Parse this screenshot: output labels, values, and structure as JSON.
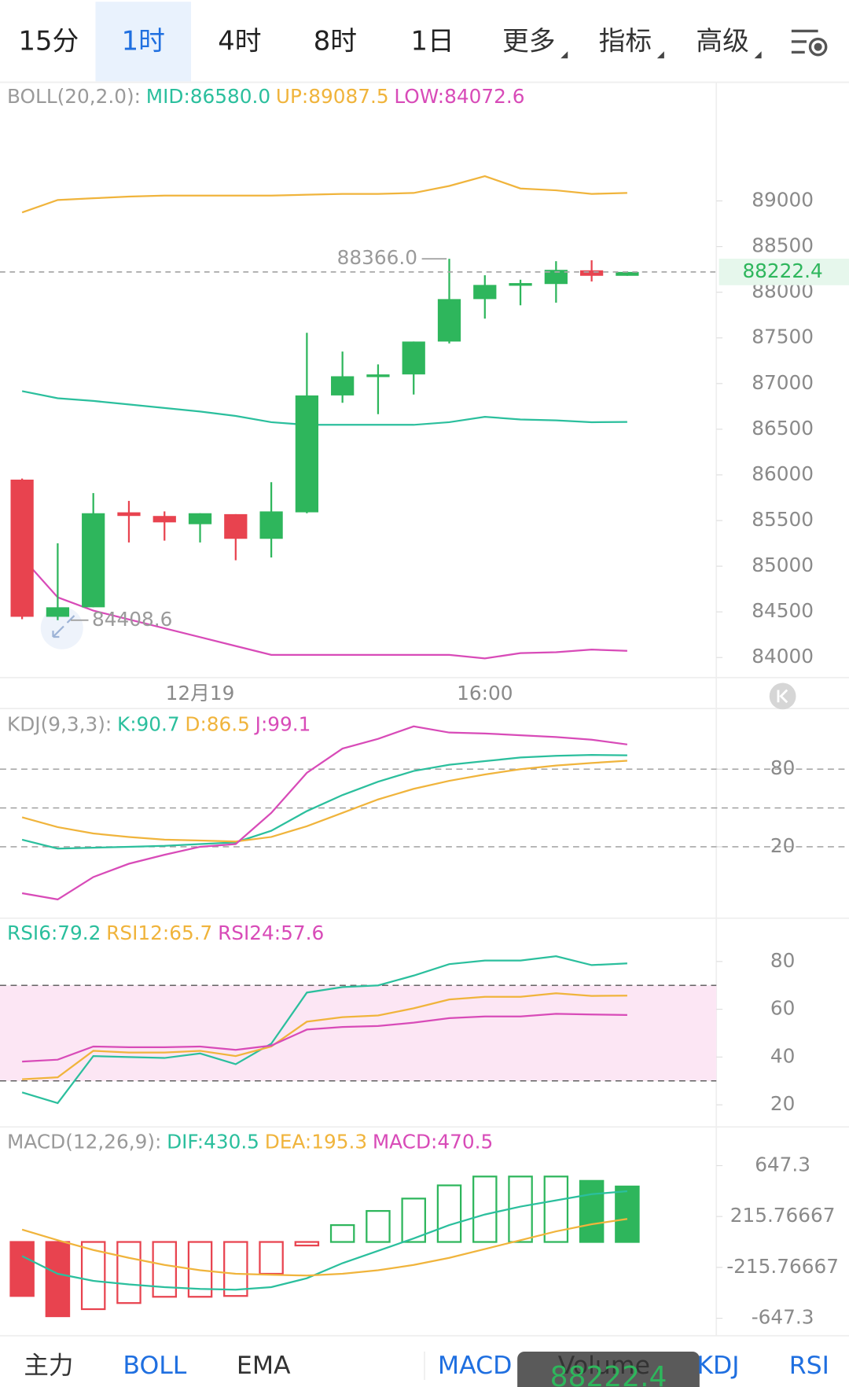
{
  "tabs": {
    "intervals": [
      "15分",
      "1时",
      "4时",
      "8时",
      "1日"
    ],
    "selected": 1,
    "menus": [
      "更多",
      "指标",
      "高级"
    ]
  },
  "chart_data": [
    {
      "type": "candlestick",
      "title": "BOLL(20,2.0):",
      "categories": [
        null,
        null,
        null,
        null,
        null,
        "12月19",
        null,
        null,
        null,
        null,
        null,
        null,
        null,
        "16:00",
        null,
        null,
        null,
        null
      ],
      "open": [
        85948,
        84446,
        84550,
        85590,
        85550,
        85460,
        85570,
        85300,
        85590,
        86870,
        87080,
        87100,
        87460,
        87925,
        88080,
        88090,
        88240,
        88180
      ],
      "high": [
        85960,
        85250,
        85800,
        85715,
        85600,
        85580,
        85570,
        85920,
        87556,
        87350,
        87210,
        87460,
        88366,
        88186,
        88137,
        88340,
        88350,
        88230
      ],
      "low": [
        84420,
        84408.6,
        84550,
        85260,
        85280,
        85260,
        85065,
        85095,
        85580,
        86790,
        86665,
        86880,
        87440,
        87711,
        87857,
        87886,
        88118,
        88180
      ],
      "close": [
        84446,
        84550,
        85580,
        85550,
        85480,
        85580,
        85300,
        85600,
        86870,
        87080,
        87100,
        87460,
        87925,
        88080,
        88100,
        88245,
        88180,
        88222.4
      ],
      "up_color": "#2eb65c",
      "down_color": "#e8434f",
      "series": [
        {
          "name": "MID:86580.0",
          "color": "#2bbf9d",
          "values": [
            86917,
            86839,
            86810,
            86771,
            86733,
            86694,
            86645,
            86577,
            86548,
            86548,
            86548,
            86548,
            86577,
            86636,
            86607,
            86597,
            86577,
            86580
          ]
        },
        {
          "name": "UP:89087.5",
          "color": "#f0b43c",
          "values": [
            88874,
            89010,
            89029,
            89048,
            89058,
            89058,
            89058,
            89058,
            89068,
            89077,
            89077,
            89087,
            89164,
            89271,
            89136,
            89116,
            89077,
            89087.5
          ]
        },
        {
          "name": "LOW:84072.6",
          "color": "#d84bb8",
          "values": [
            85095,
            84659,
            84514,
            84417,
            84320,
            84223,
            84126,
            84029,
            84029,
            84029,
            84029,
            84029,
            84029,
            83990,
            84048,
            84058,
            84087,
            84072.6
          ]
        }
      ],
      "last_price": 88222.4,
      "max_marker": {
        "value": 88366,
        "label": "88366.0"
      },
      "min_marker": 84408.6,
      "ylim": [
        83790,
        90280
      ],
      "yticks": [
        84000,
        84500,
        85000,
        85500,
        86000,
        86500,
        87000,
        87500,
        88000,
        88500,
        89000
      ]
    },
    {
      "type": "line",
      "title": "KDJ(9,3,3):",
      "series": [
        {
          "name": "K:90.7",
          "color": "#2bbf9d",
          "values": [
            25.5,
            18.6,
            19.3,
            20,
            20.7,
            22.1,
            23.4,
            32.4,
            47.6,
            60,
            70.3,
            78.6,
            83.4,
            86.2,
            89,
            90.3,
            91,
            90.7
          ]
        },
        {
          "name": "D:86.5",
          "color": "#f0b43c",
          "values": [
            42.8,
            35.2,
            30.3,
            27.6,
            25.5,
            24.8,
            24.1,
            27.6,
            35.9,
            46.2,
            56.6,
            64.8,
            71,
            75.9,
            80,
            82.8,
            84.8,
            86.5
          ]
        },
        {
          "name": "J:99.1",
          "color": "#d84bb8",
          "values": [
            -15.9,
            -20.7,
            -3.4,
            6.9,
            13.8,
            20,
            22.1,
            46.2,
            77.2,
            95.9,
            103.4,
            113.1,
            108.3,
            107.6,
            106.2,
            104.8,
            102.8,
            99.1
          ]
        }
      ],
      "dashed_levels": [
        20,
        50,
        80
      ],
      "ylim": [
        -34.5,
        125.5
      ],
      "yticks": [
        20,
        80
      ]
    },
    {
      "type": "line",
      "title": "",
      "series": [
        {
          "name": "RSI6:79.2",
          "color": "#2bbf9d",
          "values": [
            25.2,
            20.7,
            40.4,
            40,
            39.6,
            41.5,
            37,
            45.6,
            67,
            69.3,
            70,
            74.1,
            78.9,
            80.4,
            80.4,
            82.2,
            78.5,
            79.2
          ]
        },
        {
          "name": "RSI12:65.7",
          "color": "#f0b43c",
          "values": [
            30.7,
            31.5,
            42.6,
            41.9,
            41.9,
            42.6,
            40.4,
            44.4,
            54.8,
            56.7,
            57.4,
            60.4,
            64.1,
            65.2,
            65.2,
            66.7,
            65.6,
            65.7
          ]
        },
        {
          "name": "RSI24:57.6",
          "color": "#d84bb8",
          "values": [
            38.1,
            38.9,
            44.4,
            44.1,
            44.1,
            44.4,
            43,
            44.8,
            51.5,
            52.6,
            53,
            54.4,
            56.3,
            57,
            57,
            58.1,
            57.8,
            57.6
          ]
        }
      ],
      "band": [
        30,
        70
      ],
      "band_color": "#fce6f4",
      "ylim": [
        11.1,
        97.4
      ],
      "yticks": [
        20,
        40,
        60,
        80
      ]
    },
    {
      "type": "macd",
      "title": "MACD(12,26,9):",
      "series": [
        {
          "name": "DIF:430.5",
          "color": "#2bbf9d",
          "values": [
            -120,
            -270,
            -330,
            -360,
            -383,
            -398,
            -405,
            -383,
            -308,
            -180,
            -75,
            30,
            143,
            233,
            300,
            353,
            405,
            430.5
          ]
        },
        {
          "name": "DEA:195.3",
          "color": "#f0b43c",
          "values": [
            105,
            15,
            -68,
            -135,
            -195,
            -240,
            -270,
            -278,
            -285,
            -270,
            -240,
            -195,
            -135,
            -60,
            15,
            90,
            150,
            195.3
          ]
        }
      ],
      "histogram_name": "MACD:470.5",
      "histogram_label_color": "#d84bb8",
      "values": [
        -458,
        -630,
        -570,
        -518,
        -465,
        -465,
        -458,
        -270,
        -30,
        143,
        263,
        368,
        480,
        555,
        555,
        555,
        518,
        470.5
      ],
      "up_color": "#2eb65c",
      "down_color": "#e8434f",
      "ylim": [
        -795,
        953
      ],
      "yticks": [
        -647.3,
        -215.76667,
        215.76667,
        647.3
      ]
    }
  ],
  "bottom_tabs": {
    "items": [
      "主力",
      "BOLL",
      "EMA",
      "MACD",
      "Volume",
      "KDJ",
      "RSI"
    ],
    "highlighted": [
      1,
      3,
      5,
      6
    ]
  }
}
